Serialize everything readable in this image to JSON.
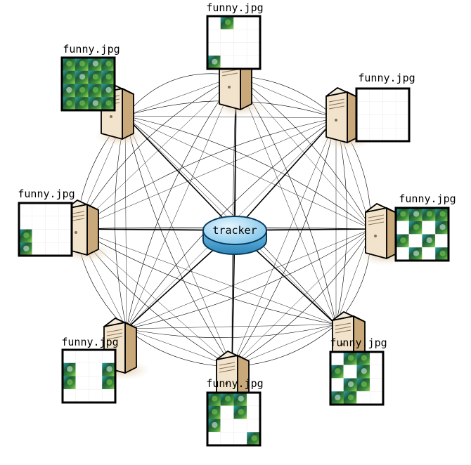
{
  "tracker": {
    "label": "tracker"
  },
  "peers": [
    {
      "id": "peer-top",
      "file": "funny.jpg",
      "pieces": [
        0,
        1,
        0,
        0,
        0,
        0,
        0,
        0,
        0,
        0,
        0,
        0,
        1,
        0,
        0,
        0
      ],
      "server_side": "right"
    },
    {
      "id": "peer-upper-right",
      "file": "funny.jpg",
      "pieces": [
        0,
        0,
        0,
        0,
        0,
        0,
        0,
        0,
        0,
        0,
        0,
        0,
        0,
        0,
        0,
        0
      ],
      "server_side": "left"
    },
    {
      "id": "peer-right",
      "file": "funny.jpg",
      "pieces": [
        1,
        1,
        1,
        1,
        0,
        1,
        0,
        1,
        1,
        0,
        1,
        0,
        0,
        1,
        0,
        1
      ],
      "server_side": "left"
    },
    {
      "id": "peer-lower-right",
      "file": "funny.jpg",
      "pieces": [
        0,
        1,
        1,
        0,
        1,
        0,
        1,
        0,
        0,
        1,
        1,
        0,
        1,
        1,
        0,
        0
      ],
      "server_side": "right"
    },
    {
      "id": "peer-bottom",
      "file": "funny.jpg",
      "pieces": [
        1,
        1,
        1,
        0,
        1,
        0,
        1,
        0,
        1,
        0,
        0,
        0,
        0,
        0,
        0,
        1
      ],
      "server_side": "right"
    },
    {
      "id": "peer-lower-left",
      "file": "funny.jpg",
      "pieces": [
        0,
        0,
        0,
        0,
        1,
        0,
        0,
        1,
        1,
        0,
        0,
        1,
        0,
        0,
        0,
        0
      ],
      "server_side": "right"
    },
    {
      "id": "peer-left",
      "file": "funny.jpg",
      "pieces": [
        0,
        0,
        0,
        0,
        0,
        0,
        0,
        0,
        1,
        0,
        0,
        0,
        1,
        0,
        0,
        0
      ],
      "server_side": "right"
    },
    {
      "id": "peer-upper-left",
      "file": "funny.jpg",
      "pieces": [
        1,
        1,
        1,
        1,
        1,
        1,
        1,
        1,
        1,
        1,
        1,
        1,
        1,
        1,
        1,
        1
      ],
      "server_side": "right"
    }
  ],
  "colors": {
    "tracker_top": "#a8d8f0",
    "tracker_side": "#5aaed8",
    "tracker_outline": "#0a3a5a",
    "server_front": "#f2e4cc",
    "server_side": "#c9a87a",
    "server_shadow": "#e8d6bc",
    "link": "#000000",
    "jungle_dark": "#1f4a2a",
    "jungle_mid": "#3f8f3a",
    "jungle_light": "#9fdc5a",
    "water": "#2aa8b0"
  }
}
